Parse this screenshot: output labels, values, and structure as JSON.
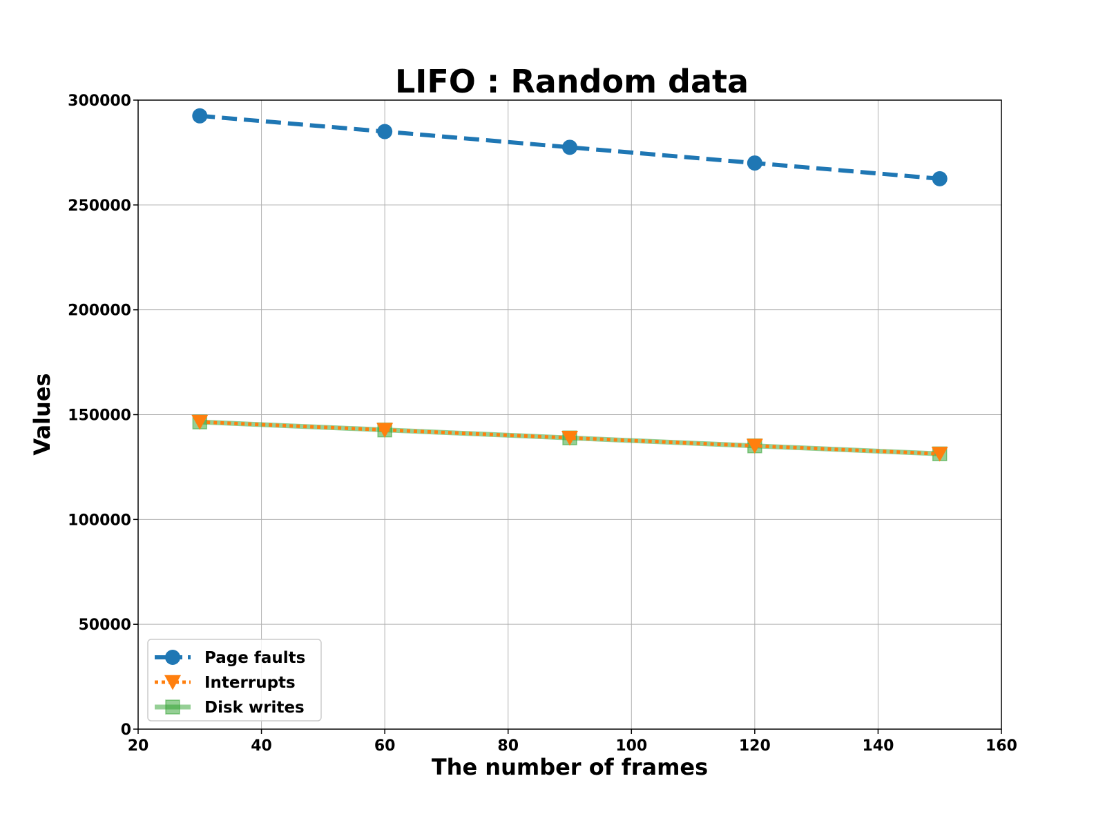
{
  "chart_data": {
    "type": "line",
    "title": "LIFO : Random data",
    "xlabel": "The number of frames",
    "ylabel": "Values",
    "x": [
      30,
      60,
      90,
      120,
      150
    ],
    "xlim": [
      20,
      160
    ],
    "ylim": [
      0,
      300000
    ],
    "xticks": [
      20,
      40,
      60,
      80,
      100,
      120,
      140,
      160
    ],
    "yticks": [
      0,
      50000,
      100000,
      150000,
      200000,
      250000,
      300000
    ],
    "xtick_labels": [
      "20",
      "40",
      "60",
      "80",
      "100",
      "120",
      "140",
      "160"
    ],
    "ytick_labels": [
      "0",
      "50000",
      "100000",
      "150000",
      "200000",
      "250000",
      "300000"
    ],
    "grid": true,
    "legend_position": "lower-left",
    "series": [
      {
        "name": "Page faults",
        "values": [
          292500,
          285000,
          277500,
          270000,
          262500
        ],
        "color": "#1f77b4",
        "marker": "circle",
        "linestyle": "dashed"
      },
      {
        "name": "Interrupts",
        "values": [
          146500,
          142700,
          138900,
          135100,
          131300
        ],
        "color": "#ff7f0e",
        "marker": "triangle-down",
        "linestyle": "dotted"
      },
      {
        "name": "Disk writes",
        "values": [
          146500,
          142700,
          138900,
          135100,
          131300
        ],
        "color": "#2ca02c",
        "marker": "square",
        "linestyle": "solid-translucent"
      }
    ]
  }
}
